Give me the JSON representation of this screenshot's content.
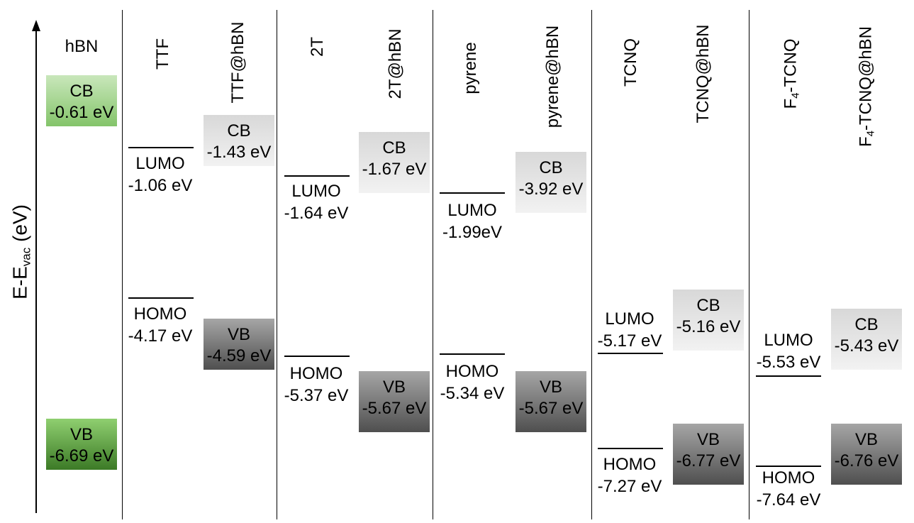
{
  "axis": {
    "label_main": "E-E",
    "label_sub": "vac",
    "label_unit": " (eV)"
  },
  "columns": {
    "hbn": {
      "header": "hBN",
      "cb_label": "CB",
      "cb_value": "-0.61 eV",
      "vb_label": "VB",
      "vb_value": "-6.69 eV"
    },
    "ttf": {
      "header": "TTF",
      "lumo_label": "LUMO",
      "lumo_value": "-1.06 eV",
      "homo_label": "HOMO",
      "homo_value": "-4.17 eV"
    },
    "ttf_hbn": {
      "header": "TTF@hBN",
      "cb_label": "CB",
      "cb_value": "-1.43 eV",
      "vb_label": "VB",
      "vb_value": "-4.59 eV"
    },
    "t2": {
      "header": "2T",
      "lumo_label": "LUMO",
      "lumo_value": "-1.64 eV",
      "homo_label": "HOMO",
      "homo_value": "-5.37 eV"
    },
    "t2_hbn": {
      "header": "2T@hBN",
      "cb_label": "CB",
      "cb_value": "-1.67 eV",
      "vb_label": "VB",
      "vb_value": "-5.67 eV"
    },
    "pyrene": {
      "header": "pyrene",
      "lumo_label": "LUMO",
      "lumo_value": "-1.99eV",
      "homo_label": "HOMO",
      "homo_value": "-5.34 eV"
    },
    "pyrene_hbn": {
      "header": "pyrene@hBN",
      "cb_label": "CB",
      "cb_value": "-3.92 eV",
      "vb_label": "VB",
      "vb_value": "-5.67 eV"
    },
    "tcnq": {
      "header": "TCNQ",
      "lumo_label": "LUMO",
      "lumo_value": "-5.17 eV",
      "homo_label": "HOMO",
      "homo_value": "-7.27 eV"
    },
    "tcnq_hbn": {
      "header": "TCNQ@hBN",
      "cb_label": "CB",
      "cb_value": "-5.16 eV",
      "vb_label": "VB",
      "vb_value": "-6.77 eV"
    },
    "f4tcnq": {
      "header_pre": "F",
      "header_sub": "4",
      "header_post": "-TCNQ",
      "lumo_label": "LUMO",
      "lumo_value": "-5.53 eV",
      "homo_label": "HOMO",
      "homo_value": "-7.64 eV"
    },
    "f4tcnq_hbn": {
      "header_pre": "F",
      "header_sub": "4",
      "header_post": "-TCNQ@hBN",
      "cb_label": "CB",
      "cb_value": "-5.43 eV",
      "vb_label": "VB",
      "vb_value": "-6.76 eV"
    }
  },
  "colors": {
    "band_gray_light": "#f2f2f2",
    "band_gray_dark": "#4f4f4f",
    "band_green_light": "#c9e7bb",
    "band_green_dark": "#3c7a26"
  }
}
